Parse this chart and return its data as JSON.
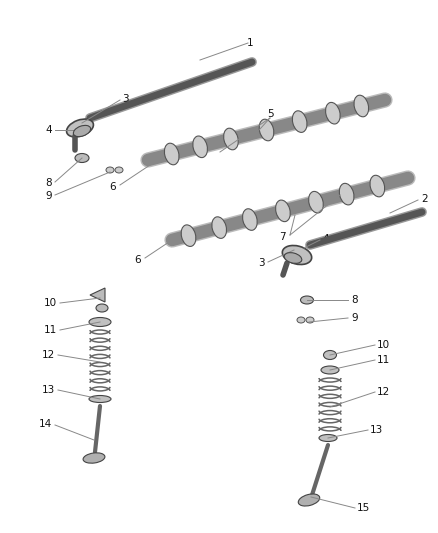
{
  "bg_color": "#ffffff",
  "fig_width": 4.39,
  "fig_height": 5.33,
  "dpi": 100,
  "lc": "#333333",
  "lc2": "#666666",
  "label_fs": 7.5,
  "leader_color": "#888888",
  "part_fill": "#d8d8d8",
  "part_edge": "#555555",
  "shaft_fill": "#c8c8c8",
  "shaft_edge": "#444444"
}
